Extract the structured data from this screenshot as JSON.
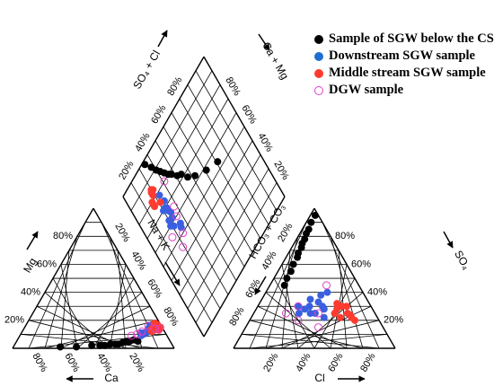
{
  "chart_data": {
    "type": "scatter",
    "subtype": "piper-diagram",
    "title": "",
    "legend_position": "top-right",
    "tick_labels": [
      "20%",
      "40%",
      "60%",
      "80%"
    ],
    "axes": {
      "cation_left_mg": "Mg",
      "cation_bottom_ca": "Ca",
      "cation_right_nak": "Na + K",
      "anion_left_hco3_co3": "HCO₃ + CO₃",
      "anion_right_so4": "SO₄",
      "anion_bottom_cl": "Cl",
      "diamond_left_so4_cl": "SO₄ + Cl",
      "diamond_right_ca_mg": "Ca + Mg"
    },
    "series": [
      {
        "name": "Sample of SGW below the CSP",
        "color": "#000000",
        "marker": "filled-circle",
        "cation": [
          [
            20,
            5
          ],
          [
            22,
            6
          ],
          [
            25,
            5
          ],
          [
            27,
            5
          ],
          [
            30,
            4
          ],
          [
            33,
            3
          ],
          [
            35,
            3
          ],
          [
            38,
            3
          ],
          [
            42,
            2
          ],
          [
            45,
            2
          ],
          [
            50,
            2
          ],
          [
            60,
            1
          ],
          [
            70,
            1
          ]
        ],
        "anion": [
          [
            3,
            95
          ],
          [
            3,
            90
          ],
          [
            4,
            85
          ],
          [
            4,
            82
          ],
          [
            5,
            78
          ],
          [
            5,
            75
          ],
          [
            6,
            72
          ],
          [
            6,
            68
          ],
          [
            7,
            65
          ],
          [
            7,
            60
          ],
          [
            8,
            55
          ],
          [
            8,
            50
          ],
          [
            9,
            45
          ]
        ]
      },
      {
        "name": "Downstream SGW sample",
        "color": "#3a5fe0",
        "marker": "filled-circle",
        "cation": [
          [
            3,
            16
          ],
          [
            5,
            15
          ],
          [
            6,
            14
          ],
          [
            8,
            13
          ],
          [
            10,
            12
          ],
          [
            12,
            11
          ],
          [
            9,
            14
          ],
          [
            14,
            10
          ],
          [
            16,
            9
          ],
          [
            11,
            12
          ],
          [
            13,
            11
          ],
          [
            7,
            16
          ],
          [
            15,
            11
          ]
        ],
        "anion": [
          [
            35,
            25
          ],
          [
            38,
            25
          ],
          [
            40,
            30
          ],
          [
            30,
            28
          ],
          [
            42,
            28
          ],
          [
            32,
            30
          ],
          [
            36,
            33
          ],
          [
            30,
            35
          ],
          [
            28,
            25
          ],
          [
            38,
            40
          ],
          [
            35,
            38
          ],
          [
            45,
            22
          ],
          [
            25,
            30
          ]
        ]
      },
      {
        "name": "Middle stream SGW sample",
        "color": "#ff3b30",
        "marker": "filled-circle",
        "cation": [
          [
            1,
            15
          ],
          [
            2,
            17
          ],
          [
            3,
            13
          ],
          [
            2,
            14
          ],
          [
            4,
            16
          ],
          [
            5,
            14
          ],
          [
            6,
            13
          ],
          [
            3,
            18
          ],
          [
            7,
            14
          ],
          [
            8,
            12
          ]
        ],
        "anion": [
          [
            50,
            28
          ],
          [
            52,
            30
          ],
          [
            55,
            22
          ],
          [
            48,
            32
          ],
          [
            55,
            30
          ],
          [
            58,
            25
          ],
          [
            60,
            24
          ],
          [
            62,
            22
          ],
          [
            50,
            25
          ],
          [
            65,
            20
          ]
        ]
      },
      {
        "name": "DGW sample",
        "color": "#e040c8",
        "marker": "open-circle",
        "cation": [
          [
            2,
            14
          ],
          [
            5,
            14
          ],
          [
            8,
            16
          ],
          [
            14,
            12
          ],
          [
            18,
            10
          ],
          [
            22,
            9
          ]
        ],
        "anion": [
          [
            25,
            30
          ],
          [
            20,
            25
          ],
          [
            30,
            20
          ],
          [
            45,
            15
          ],
          [
            40,
            25
          ],
          [
            35,
            45
          ]
        ]
      }
    ]
  }
}
